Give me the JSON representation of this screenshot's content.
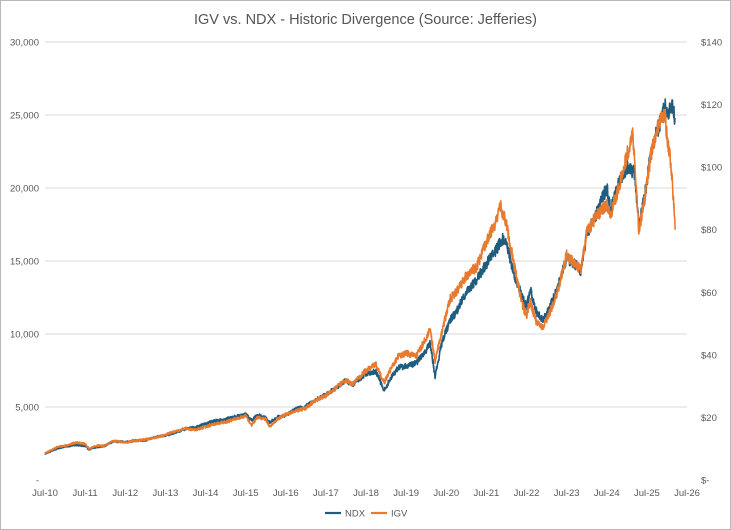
{
  "chart_data": {
    "type": "line",
    "title": "IGV vs. NDX - Historic Divergence (Source: Jefferies)",
    "x_tick_labels": [
      "Jul-10",
      "Jul-11",
      "Jul-12",
      "Jul-13",
      "Jul-14",
      "Jul-15",
      "Jul-16",
      "Jul-17",
      "Jul-18",
      "Jul-19",
      "Jul-20",
      "Jul-21",
      "Jul-22",
      "Jul-23",
      "Jul-24",
      "Jul-25",
      "Jul-26"
    ],
    "xlim": [
      2010.5,
      2026.5
    ],
    "left_axis": {
      "ylim": [
        0,
        30000
      ],
      "tick_values": [
        0,
        5000,
        10000,
        15000,
        20000,
        25000,
        30000
      ],
      "tick_labels": [
        "-",
        "5,000",
        "10,000",
        "15,000",
        "20,000",
        "25,000",
        "30,000"
      ]
    },
    "right_axis": {
      "ylim": [
        0,
        140
      ],
      "tick_values": [
        0,
        20,
        40,
        60,
        80,
        100,
        120,
        140
      ],
      "tick_labels": [
        "$-",
        "$20",
        "$40",
        "$60",
        "$80",
        "$100",
        "$120",
        "$140"
      ]
    },
    "grid": true,
    "legend_position": "bottom",
    "series": [
      {
        "name": "NDX",
        "axis": "left",
        "color": "#1f5c7d",
        "points": [
          [
            2010.5,
            1800
          ],
          [
            2010.8,
            2150
          ],
          [
            2011.0,
            2300
          ],
          [
            2011.3,
            2400
          ],
          [
            2011.5,
            2300
          ],
          [
            2011.6,
            2100
          ],
          [
            2011.8,
            2250
          ],
          [
            2012.0,
            2350
          ],
          [
            2012.2,
            2650
          ],
          [
            2012.5,
            2600
          ],
          [
            2012.75,
            2700
          ],
          [
            2013.0,
            2700
          ],
          [
            2013.25,
            2950
          ],
          [
            2013.5,
            3050
          ],
          [
            2013.75,
            3250
          ],
          [
            2014.0,
            3500
          ],
          [
            2014.25,
            3600
          ],
          [
            2014.5,
            3850
          ],
          [
            2014.75,
            4050
          ],
          [
            2015.0,
            4150
          ],
          [
            2015.25,
            4350
          ],
          [
            2015.5,
            4500
          ],
          [
            2015.65,
            4100
          ],
          [
            2015.8,
            4450
          ],
          [
            2016.0,
            4250
          ],
          [
            2016.1,
            3950
          ],
          [
            2016.3,
            4300
          ],
          [
            2016.5,
            4450
          ],
          [
            2016.75,
            4850
          ],
          [
            2017.0,
            5050
          ],
          [
            2017.25,
            5500
          ],
          [
            2017.5,
            5850
          ],
          [
            2017.75,
            6300
          ],
          [
            2018.0,
            6850
          ],
          [
            2018.15,
            6500
          ],
          [
            2018.5,
            7300
          ],
          [
            2018.75,
            7450
          ],
          [
            2018.95,
            6100
          ],
          [
            2019.1,
            6900
          ],
          [
            2019.3,
            7700
          ],
          [
            2019.5,
            7800
          ],
          [
            2019.75,
            8000
          ],
          [
            2020.0,
            8900
          ],
          [
            2020.1,
            9400
          ],
          [
            2020.22,
            7100
          ],
          [
            2020.4,
            9500
          ],
          [
            2020.6,
            11000
          ],
          [
            2020.75,
            11500
          ],
          [
            2021.0,
            12900
          ],
          [
            2021.25,
            13700
          ],
          [
            2021.5,
            14800
          ],
          [
            2021.75,
            15800
          ],
          [
            2021.9,
            16500
          ],
          [
            2022.0,
            16200
          ],
          [
            2022.2,
            14000
          ],
          [
            2022.4,
            12500
          ],
          [
            2022.5,
            11900
          ],
          [
            2022.6,
            13000
          ],
          [
            2022.75,
            11500
          ],
          [
            2022.9,
            11000
          ],
          [
            2023.0,
            11300
          ],
          [
            2023.25,
            13000
          ],
          [
            2023.5,
            15200
          ],
          [
            2023.75,
            14700
          ],
          [
            2023.85,
            14300
          ],
          [
            2024.0,
            16800
          ],
          [
            2024.25,
            18300
          ],
          [
            2024.5,
            20000
          ],
          [
            2024.6,
            18400
          ],
          [
            2024.75,
            20000
          ],
          [
            2025.0,
            21500
          ],
          [
            2025.2,
            21000
          ],
          [
            2025.3,
            17500
          ],
          [
            2025.45,
            19500
          ],
          [
            2025.6,
            22500
          ],
          [
            2025.75,
            24000
          ],
          [
            2025.85,
            24500
          ],
          [
            2025.95,
            25600
          ],
          [
            2026.05,
            25200
          ],
          [
            2026.12,
            25800
          ],
          [
            2026.2,
            24800
          ]
        ]
      },
      {
        "name": "IGV",
        "axis": "right",
        "color": "#e87a2f",
        "points": [
          [
            2010.5,
            8.5
          ],
          [
            2010.8,
            10.5
          ],
          [
            2011.0,
            11.0
          ],
          [
            2011.3,
            12.0
          ],
          [
            2011.5,
            11.5
          ],
          [
            2011.6,
            10.0
          ],
          [
            2011.8,
            11.0
          ],
          [
            2012.0,
            11.0
          ],
          [
            2012.2,
            12.5
          ],
          [
            2012.5,
            12.0
          ],
          [
            2012.75,
            12.5
          ],
          [
            2013.0,
            13.0
          ],
          [
            2013.25,
            13.5
          ],
          [
            2013.5,
            14.5
          ],
          [
            2013.75,
            15.5
          ],
          [
            2014.0,
            16.5
          ],
          [
            2014.25,
            16.0
          ],
          [
            2014.5,
            17.0
          ],
          [
            2014.75,
            18.0
          ],
          [
            2015.0,
            18.5
          ],
          [
            2015.25,
            19.5
          ],
          [
            2015.5,
            20.5
          ],
          [
            2015.65,
            17.5
          ],
          [
            2015.8,
            20.0
          ],
          [
            2016.0,
            19.5
          ],
          [
            2016.1,
            17.0
          ],
          [
            2016.3,
            19.5
          ],
          [
            2016.5,
            21.0
          ],
          [
            2016.75,
            22.0
          ],
          [
            2017.0,
            23.0
          ],
          [
            2017.25,
            25.5
          ],
          [
            2017.5,
            27.0
          ],
          [
            2017.75,
            29.5
          ],
          [
            2018.0,
            32.0
          ],
          [
            2018.15,
            30.5
          ],
          [
            2018.5,
            35.0
          ],
          [
            2018.75,
            37.0
          ],
          [
            2018.95,
            31.0
          ],
          [
            2019.1,
            35.0
          ],
          [
            2019.3,
            39.5
          ],
          [
            2019.5,
            40.5
          ],
          [
            2019.75,
            39.5
          ],
          [
            2020.0,
            45.5
          ],
          [
            2020.1,
            48.0
          ],
          [
            2020.22,
            38.0
          ],
          [
            2020.4,
            48.0
          ],
          [
            2020.6,
            58.0
          ],
          [
            2020.75,
            60.0
          ],
          [
            2021.0,
            65.5
          ],
          [
            2021.25,
            68.0
          ],
          [
            2021.5,
            76.0
          ],
          [
            2021.75,
            83.0
          ],
          [
            2021.85,
            87.5
          ],
          [
            2022.0,
            82.0
          ],
          [
            2022.2,
            68.0
          ],
          [
            2022.4,
            56.0
          ],
          [
            2022.5,
            52.5
          ],
          [
            2022.6,
            57.0
          ],
          [
            2022.75,
            50.0
          ],
          [
            2022.9,
            49.0
          ],
          [
            2023.0,
            51.0
          ],
          [
            2023.25,
            59.0
          ],
          [
            2023.5,
            72.0
          ],
          [
            2023.75,
            68.5
          ],
          [
            2023.85,
            67.5
          ],
          [
            2024.0,
            79.0
          ],
          [
            2024.25,
            84.5
          ],
          [
            2024.5,
            88.0
          ],
          [
            2024.6,
            85.0
          ],
          [
            2024.75,
            91.0
          ],
          [
            2025.0,
            104.0
          ],
          [
            2025.15,
            110.0
          ],
          [
            2025.3,
            80.0
          ],
          [
            2025.45,
            90.0
          ],
          [
            2025.6,
            104.0
          ],
          [
            2025.75,
            112.0
          ],
          [
            2025.85,
            116.0
          ],
          [
            2025.95,
            117.0
          ],
          [
            2026.02,
            107.0
          ],
          [
            2026.08,
            103.0
          ],
          [
            2026.13,
            95.0
          ],
          [
            2026.17,
            88.0
          ],
          [
            2026.21,
            80.0
          ]
        ]
      }
    ]
  }
}
